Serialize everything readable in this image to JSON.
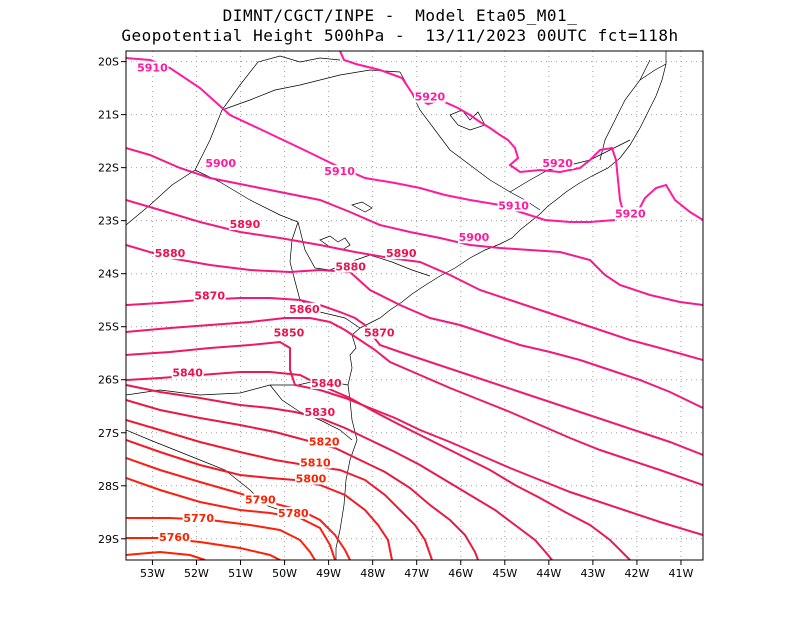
{
  "header": {
    "title_line1": "DIMNT/CGCT/INPE -  Model Eta05_M01_",
    "title_line2": "Geopotential Height 500hPa -  13/11/2023 00UTC fct=118h"
  },
  "map": {
    "lon_range": [
      -53.6,
      -40.5
    ],
    "lat_range": [
      -29.4,
      -19.8
    ],
    "lon_ticks": [
      {
        "value": -53,
        "label": "53W"
      },
      {
        "value": -52,
        "label": "52W"
      },
      {
        "value": -51,
        "label": "51W"
      },
      {
        "value": -50,
        "label": "50W"
      },
      {
        "value": -49,
        "label": "49W"
      },
      {
        "value": -48,
        "label": "48W"
      },
      {
        "value": -47,
        "label": "47W"
      },
      {
        "value": -46,
        "label": "46W"
      },
      {
        "value": -45,
        "label": "45W"
      },
      {
        "value": -44,
        "label": "44W"
      },
      {
        "value": -43,
        "label": "43W"
      },
      {
        "value": -42,
        "label": "42W"
      },
      {
        "value": -41,
        "label": "41W"
      }
    ],
    "lat_ticks": [
      {
        "value": -20,
        "label": "20S"
      },
      {
        "value": -21,
        "label": "21S"
      },
      {
        "value": -22,
        "label": "22S"
      },
      {
        "value": -23,
        "label": "23S"
      },
      {
        "value": -24,
        "label": "24S"
      },
      {
        "value": -25,
        "label": "25S"
      },
      {
        "value": -26,
        "label": "26S"
      },
      {
        "value": -27,
        "label": "27S"
      },
      {
        "value": -28,
        "label": "28S"
      },
      {
        "value": -29,
        "label": "29S"
      }
    ],
    "grid": "dotted",
    "colors": {
      "high": "#ff1aa0",
      "mid": "#f01050",
      "low": "#ff2000",
      "border": "#000000",
      "grid": "#a0a0a0"
    },
    "contour_labels": [
      {
        "text": "5910",
        "lon": -53.0,
        "lat": -20.15
      },
      {
        "text": "5920",
        "lon": -46.7,
        "lat": -20.7
      },
      {
        "text": "5920",
        "lon": -43.8,
        "lat": -21.95
      },
      {
        "text": "5920",
        "lon": -42.15,
        "lat": -22.9
      },
      {
        "text": "5910",
        "lon": -48.75,
        "lat": -22.1
      },
      {
        "text": "5910",
        "lon": -44.8,
        "lat": -22.75
      },
      {
        "text": "5900",
        "lon": -51.45,
        "lat": -21.95
      },
      {
        "text": "5900",
        "lon": -45.7,
        "lat": -23.35
      },
      {
        "text": "5890",
        "lon": -50.9,
        "lat": -23.1
      },
      {
        "text": "5890",
        "lon": -47.35,
        "lat": -23.65
      },
      {
        "text": "5880",
        "lon": -52.6,
        "lat": -23.65
      },
      {
        "text": "5880",
        "lon": -48.5,
        "lat": -23.9
      },
      {
        "text": "5870",
        "lon": -51.7,
        "lat": -24.45
      },
      {
        "text": "5870",
        "lon": -47.85,
        "lat": -25.15
      },
      {
        "text": "5860",
        "lon": -49.55,
        "lat": -24.7
      },
      {
        "text": "5850",
        "lon": -49.9,
        "lat": -25.15
      },
      {
        "text": "5840",
        "lon": -52.2,
        "lat": -25.9
      },
      {
        "text": "5840",
        "lon": -49.05,
        "lat": -26.1
      },
      {
        "text": "5830",
        "lon": -49.2,
        "lat": -26.65
      },
      {
        "text": "5820",
        "lon": -49.1,
        "lat": -27.2
      },
      {
        "text": "5810",
        "lon": -49.3,
        "lat": -27.6
      },
      {
        "text": "5800",
        "lon": -49.4,
        "lat": -27.9
      },
      {
        "text": "5790",
        "lon": -50.55,
        "lat": -28.3
      },
      {
        "text": "5780",
        "lon": -49.8,
        "lat": -28.55
      },
      {
        "text": "5770",
        "lon": -51.95,
        "lat": -28.65
      },
      {
        "text": "5760",
        "lon": -52.5,
        "lat": -29.0
      }
    ]
  }
}
